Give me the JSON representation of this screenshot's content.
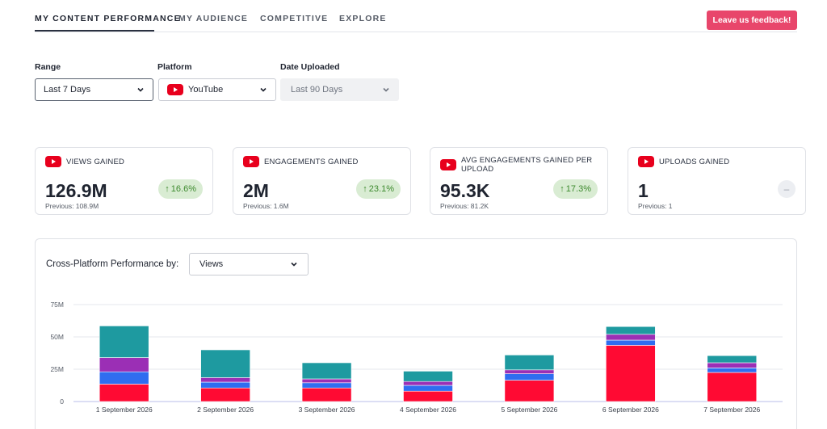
{
  "nav": {
    "tabs": [
      {
        "label": "MY CONTENT PERFORMANCE",
        "active": true
      },
      {
        "label": "MY AUDIENCE",
        "active": false
      },
      {
        "label": "COMPETITIVE",
        "active": false
      },
      {
        "label": "EXPLORE",
        "active": false
      }
    ],
    "feedback_label": "Leave us feedback!"
  },
  "filters": {
    "range": {
      "label": "Range",
      "value": "Last 7 Days"
    },
    "platform": {
      "label": "Platform",
      "value": "YouTube",
      "icon": "youtube-icon"
    },
    "date_uploaded": {
      "label": "Date Uploaded",
      "value": "Last 90 Days",
      "disabled": true
    }
  },
  "kpis": [
    {
      "title": "VIEWS GAINED",
      "value": "126.9M",
      "previous": "Previous: 108.9M",
      "change": "16.6%",
      "trend": "up"
    },
    {
      "title": "ENGAGEMENTS GAINED",
      "value": "2M",
      "previous": "Previous: 1.6M",
      "change": "23.1%",
      "trend": "up"
    },
    {
      "title": "AVG ENGAGEMENTS GAINED PER UPLOAD",
      "value": "95.3K",
      "previous": "Previous: 81.2K",
      "change": "17.3%",
      "trend": "up"
    },
    {
      "title": "UPLOADS GAINED",
      "value": "1",
      "previous": "Previous: 1",
      "change": "",
      "trend": "neutral",
      "neutral_symbol": "–"
    }
  ],
  "panel": {
    "title": "Cross-Platform Performance by:",
    "metric": "Views"
  },
  "colors": {
    "accent": "#e8466b",
    "youtube": "#e8001d",
    "positive": "#3d8a2e",
    "positive_bg": "#d9ecd3"
  },
  "chart_data": {
    "type": "bar",
    "stacked": true,
    "categories": [
      "1 September 2026",
      "2 September 2026",
      "3 September 2026",
      "4 September 2026",
      "5 September 2026",
      "6 September 2026",
      "7 September 2026"
    ],
    "yticks": [
      "0",
      "25M",
      "50M",
      "75M"
    ],
    "ylim": [
      0,
      75
    ],
    "series": [
      {
        "color": "#ff0a33",
        "values": [
          13.5,
          10.5,
          10.5,
          8,
          16.5,
          43.5,
          22.5
        ]
      },
      {
        "color": "#2f6df0",
        "values": [
          9.5,
          4.5,
          4,
          4.5,
          5,
          4,
          3.5
        ]
      },
      {
        "color": "#9b2fb5",
        "values": [
          11,
          3.5,
          3,
          3,
          3,
          4.5,
          4
        ]
      },
      {
        "color": "#1e9aa0",
        "values": [
          24.5,
          21.5,
          12.5,
          8,
          11.5,
          6,
          5.5
        ]
      }
    ]
  }
}
